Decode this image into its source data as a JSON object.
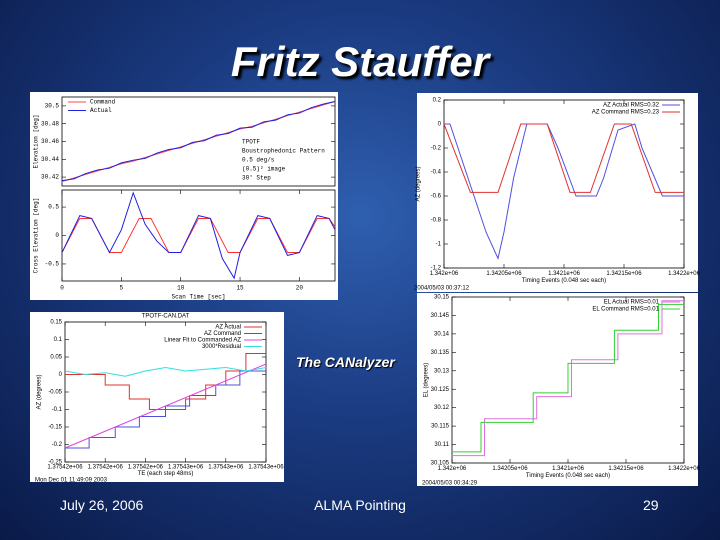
{
  "slide": {
    "title": "Fritz Stauffer",
    "caption": "The CANalyzer",
    "footer_date": "July 26, 2006",
    "footer_center": "ALMA Pointing",
    "page_number": 29
  },
  "chart_data": [
    {
      "type": "line",
      "ylabel": "Elevation [deg]",
      "xlim": [
        0,
        23
      ],
      "ylim": [
        30.41,
        30.51
      ],
      "yticks": [
        30.42,
        30.44,
        30.46,
        30.48,
        30.5
      ],
      "legend": "upper left",
      "annotation": [
        "TPOTF",
        "Boustrophedonic Pattern",
        "0.5 deg/s",
        "(0.5)² image",
        "30' Step"
      ],
      "series": [
        {
          "name": "Command",
          "color": "#ff4a4a",
          "x": [
            0,
            1,
            2,
            3,
            4,
            5,
            6,
            7,
            8,
            9,
            10,
            11,
            12,
            13,
            14,
            15,
            16,
            17,
            18,
            19,
            20,
            21,
            22,
            23
          ],
          "values": [
            30.415,
            30.419,
            30.423,
            30.427,
            30.431,
            30.435,
            30.438,
            30.442,
            30.446,
            30.45,
            30.454,
            30.458,
            30.462,
            30.466,
            30.47,
            30.474,
            30.477,
            30.481,
            30.485,
            30.489,
            30.493,
            30.497,
            30.501,
            30.505
          ]
        },
        {
          "name": "Actual",
          "color": "#2020e0",
          "x": [
            0,
            1,
            2,
            3,
            4,
            5,
            6,
            7,
            8,
            9,
            10,
            11,
            12,
            13,
            14,
            15,
            16,
            17,
            18,
            19,
            20,
            21,
            22,
            23
          ],
          "values": [
            30.416,
            30.418,
            30.424,
            30.428,
            30.43,
            30.436,
            30.439,
            30.441,
            30.447,
            30.451,
            30.453,
            30.459,
            30.461,
            30.467,
            30.469,
            30.475,
            30.476,
            30.482,
            30.484,
            30.49,
            30.492,
            30.498,
            30.502,
            30.505
          ]
        }
      ]
    },
    {
      "type": "line",
      "ylabel": "Cross Elevation [deg]",
      "xlabel": "Scan Time [sec]",
      "xlim": [
        0,
        23
      ],
      "ylim": [
        -0.8,
        0.8
      ],
      "xticks": [
        0,
        5,
        10,
        15,
        20
      ],
      "yticks": [
        -0.5,
        0,
        0.5
      ],
      "series": [
        {
          "color": "#ff3030",
          "x": [
            0,
            1.5,
            2.5,
            4,
            5,
            6.5,
            7.5,
            9,
            10,
            11.5,
            12.5,
            14,
            15,
            16.5,
            17.5,
            19,
            20,
            21.5,
            22.5,
            23
          ],
          "values": [
            -0.3,
            0.3,
            0.3,
            -0.3,
            -0.3,
            0.3,
            0.3,
            -0.3,
            -0.3,
            0.3,
            0.3,
            -0.3,
            -0.3,
            0.3,
            0.3,
            -0.3,
            -0.3,
            0.3,
            0.3,
            0.15
          ]
        },
        {
          "color": "#2020e0",
          "x": [
            0,
            1.5,
            2.5,
            4,
            5,
            6,
            7,
            8,
            9,
            10,
            11.5,
            12.5,
            13.5,
            14.5,
            15,
            16.5,
            17.5,
            19,
            20,
            21.5,
            22.5,
            23
          ],
          "values": [
            -0.3,
            0.35,
            0.3,
            -0.3,
            0.1,
            0.75,
            0.2,
            -0.1,
            -0.3,
            -0.3,
            0.35,
            0.3,
            -0.4,
            -0.75,
            -0.3,
            0.35,
            0.3,
            -0.35,
            -0.3,
            0.35,
            0.3,
            0.1
          ]
        }
      ]
    },
    {
      "type": "line",
      "ylabel": "AZ (degrees)",
      "xlabel": "Timing Events (0.048 sec each)",
      "footnote": "2004/05/03 00:37:12",
      "legend": "upper right",
      "xlim": [
        1342000,
        1342200
      ],
      "ylim": [
        -1.2,
        0.2
      ],
      "xticks": [
        {
          "value": 1342000,
          "label": "1.342e+06"
        },
        {
          "value": 1342050,
          "label": "1.34205e+06"
        },
        {
          "value": 1342100,
          "label": "1.3421e+06"
        },
        {
          "value": 1342150,
          "label": "1.34215e+06"
        },
        {
          "value": 1342200,
          "label": "1.3422e+06"
        }
      ],
      "yticks": [
        0.2,
        0,
        -0.2,
        -0.4,
        -0.6,
        -0.8,
        -1,
        -1.2
      ],
      "series": [
        {
          "name": "AZ Actual RMS=0.32",
          "color": "#5050e0",
          "x": [
            1342000,
            1342005,
            1342020,
            1342035,
            1342045,
            1342050,
            1342058,
            1342069,
            1342086,
            1342095,
            1342110,
            1342127,
            1342133,
            1342145,
            1342159,
            1342165,
            1342182,
            1342200
          ],
          "values": [
            0,
            0,
            -0.45,
            -0.9,
            -1.12,
            -0.9,
            -0.45,
            0,
            0,
            -0.2,
            -0.6,
            -0.6,
            -0.45,
            -0.05,
            0,
            -0.2,
            -0.6,
            -0.6
          ]
        },
        {
          "name": "AZ Command RMS=0.23",
          "color": "#e03030",
          "x": [
            1342000,
            1342022,
            1342045,
            1342064,
            1342086,
            1342105,
            1342122,
            1342142,
            1342156,
            1342176,
            1342200
          ],
          "values": [
            0,
            -0.57,
            -0.57,
            0,
            0,
            -0.57,
            -0.57,
            0,
            0,
            -0.57,
            -0.57
          ]
        }
      ]
    },
    {
      "type": "line",
      "ylabel": "EL (degrees)",
      "xlabel": "Timing Events (0.048 sec each)",
      "footnote": "2004/05/03 00:34:29",
      "legend": "upper right",
      "xlim": [
        1342000,
        1342200
      ],
      "ylim": [
        30.105,
        30.15
      ],
      "xticks": [
        {
          "value": 1342000,
          "label": "1.342e+06"
        },
        {
          "value": 1342050,
          "label": "1.34205e+06"
        },
        {
          "value": 1342100,
          "label": "1.3421e+06"
        },
        {
          "value": 1342150,
          "label": "1.34215e+06"
        },
        {
          "value": 1342200,
          "label": "1.3422e+06"
        }
      ],
      "yticks": [
        30.105,
        30.11,
        30.115,
        30.12,
        30.125,
        30.13,
        30.135,
        30.14,
        30.145,
        30.15
      ],
      "series": [
        {
          "name": "EL Actual RMS=0.01",
          "color": "#e070e0",
          "x": [
            1342000,
            1342028,
            1342028,
            1342073,
            1342073,
            1342103,
            1342103,
            1342143,
            1342143,
            1342181,
            1342181,
            1342200
          ],
          "values": [
            30.107,
            30.107,
            30.117,
            30.117,
            30.123,
            30.123,
            30.133,
            30.133,
            30.14,
            30.14,
            30.149,
            30.149
          ]
        },
        {
          "name": "EL Command RMS=0.01",
          "color": "#30d030",
          "x": [
            1342000,
            1342025,
            1342025,
            1342070,
            1342070,
            1342100,
            1342100,
            1342140,
            1342140,
            1342178,
            1342178,
            1342200
          ],
          "values": [
            30.108,
            30.108,
            30.116,
            30.116,
            30.124,
            30.124,
            30.132,
            30.132,
            30.141,
            30.141,
            30.148,
            30.148
          ]
        }
      ]
    },
    {
      "type": "line",
      "title": "TPOTF-CAN.DAT",
      "ylabel": "AZ (degrees)",
      "xlabel": "TE (each step 48ms)",
      "footnote": "Mon Dec 01 11:49:09 2003",
      "legend": "upper right",
      "xlim": [
        1375420,
        1375430
      ],
      "ylim": [
        -0.25,
        0.15
      ],
      "xticks": [
        {
          "value": 1375420,
          "label": "1.37542e+06"
        },
        {
          "value": 1375422,
          "label": "1.37542e+06"
        },
        {
          "value": 1375424,
          "label": "1.37542e+06"
        },
        {
          "value": 1375426,
          "label": "1.37543e+06"
        },
        {
          "value": 1375428,
          "label": "1.37543e+06"
        },
        {
          "value": 1375430,
          "label": "1.37543e+06"
        }
      ],
      "yticks": [
        0.15,
        0.1,
        0.05,
        0,
        -0.05,
        -0.1,
        -0.15,
        -0.2,
        -0.25
      ],
      "series": [
        {
          "name": "AZ Actual",
          "color": "#e03030",
          "x": [
            1375420,
            1375422,
            1375422,
            1375423.2,
            1375423.2,
            1375424.2,
            1375424.2,
            1375426,
            1375426,
            1375427,
            1375427,
            1375428,
            1375428,
            1375429,
            1375429,
            1375430
          ],
          "values": [
            0,
            0,
            -0.03,
            -0.03,
            -0.07,
            -0.07,
            -0.1,
            -0.1,
            -0.07,
            -0.07,
            -0.03,
            -0.03,
            0.01,
            0.01,
            0.06,
            0.06
          ]
        },
        {
          "name": "AZ Command",
          "color": "#5050e0",
          "x": [
            1375420,
            1375421.2,
            1375421.2,
            1375422.5,
            1375422.5,
            1375423.7,
            1375423.7,
            1375425,
            1375425,
            1375426.2,
            1375426.2,
            1375427.5,
            1375427.5,
            1375428.7,
            1375428.7,
            1375430
          ],
          "values": [
            -0.21,
            -0.21,
            -0.18,
            -0.18,
            -0.15,
            -0.15,
            -0.12,
            -0.12,
            -0.09,
            -0.09,
            -0.06,
            -0.06,
            -0.03,
            -0.03,
            0.01,
            0.01
          ]
        },
        {
          "name": "Linear Fit to Commanded AZ",
          "color": "#e040e0",
          "x": [
            1375420,
            1375430
          ],
          "values": [
            -0.21,
            0.03
          ]
        },
        {
          "name": "3000*Residual",
          "color": "#30e0e0",
          "x": [
            1375420,
            1375421,
            1375422,
            1375423,
            1375424,
            1375425,
            1375426,
            1375427,
            1375428,
            1375429,
            1375430
          ],
          "values": [
            0.01,
            0,
            0.005,
            -0.005,
            0.01,
            0.02,
            0.01,
            0.015,
            0.02,
            0.01,
            0.02
          ]
        }
      ]
    }
  ]
}
